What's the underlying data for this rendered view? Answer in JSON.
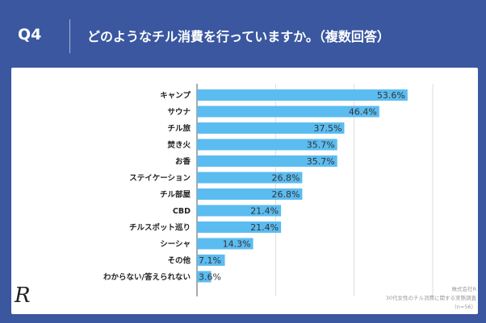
{
  "header": {
    "q_label": "Q4",
    "title": "どのようなチル消費を行っていますか。（複数回答）"
  },
  "source": {
    "line1": "株式会社R",
    "line2": "30代女性のチル消費に関する実態調査",
    "line3": "（n=56）"
  },
  "logo": {
    "text": "R"
  },
  "chart_data": {
    "type": "bar",
    "orientation": "horizontal",
    "categories": [
      "キャンプ",
      "サウナ",
      "チル旅",
      "焚き火",
      "お香",
      "ステイケーション",
      "チル部屋",
      "CBD",
      "チルスポット巡り",
      "シーシャ",
      "その他",
      "わからない/答えられない"
    ],
    "values": [
      53.6,
      46.4,
      37.5,
      35.7,
      35.7,
      26.8,
      26.8,
      21.4,
      21.4,
      14.3,
      7.1,
      3.6
    ],
    "value_labels": [
      "53.6%",
      "46.4%",
      "37.5%",
      "35.7%",
      "35.7%",
      "26.8%",
      "26.8%",
      "21.4%",
      "21.4%",
      "14.3%",
      "7.1%",
      "3.6%"
    ],
    "xlim": [
      0,
      60
    ],
    "grid": "vertical lines",
    "bar_color": "#5bbcf0",
    "title": "",
    "xlabel": "",
    "ylabel": ""
  },
  "colors": {
    "background": "#3a57a0",
    "panel": "#ffffff",
    "bar": "#5bbcf0"
  }
}
